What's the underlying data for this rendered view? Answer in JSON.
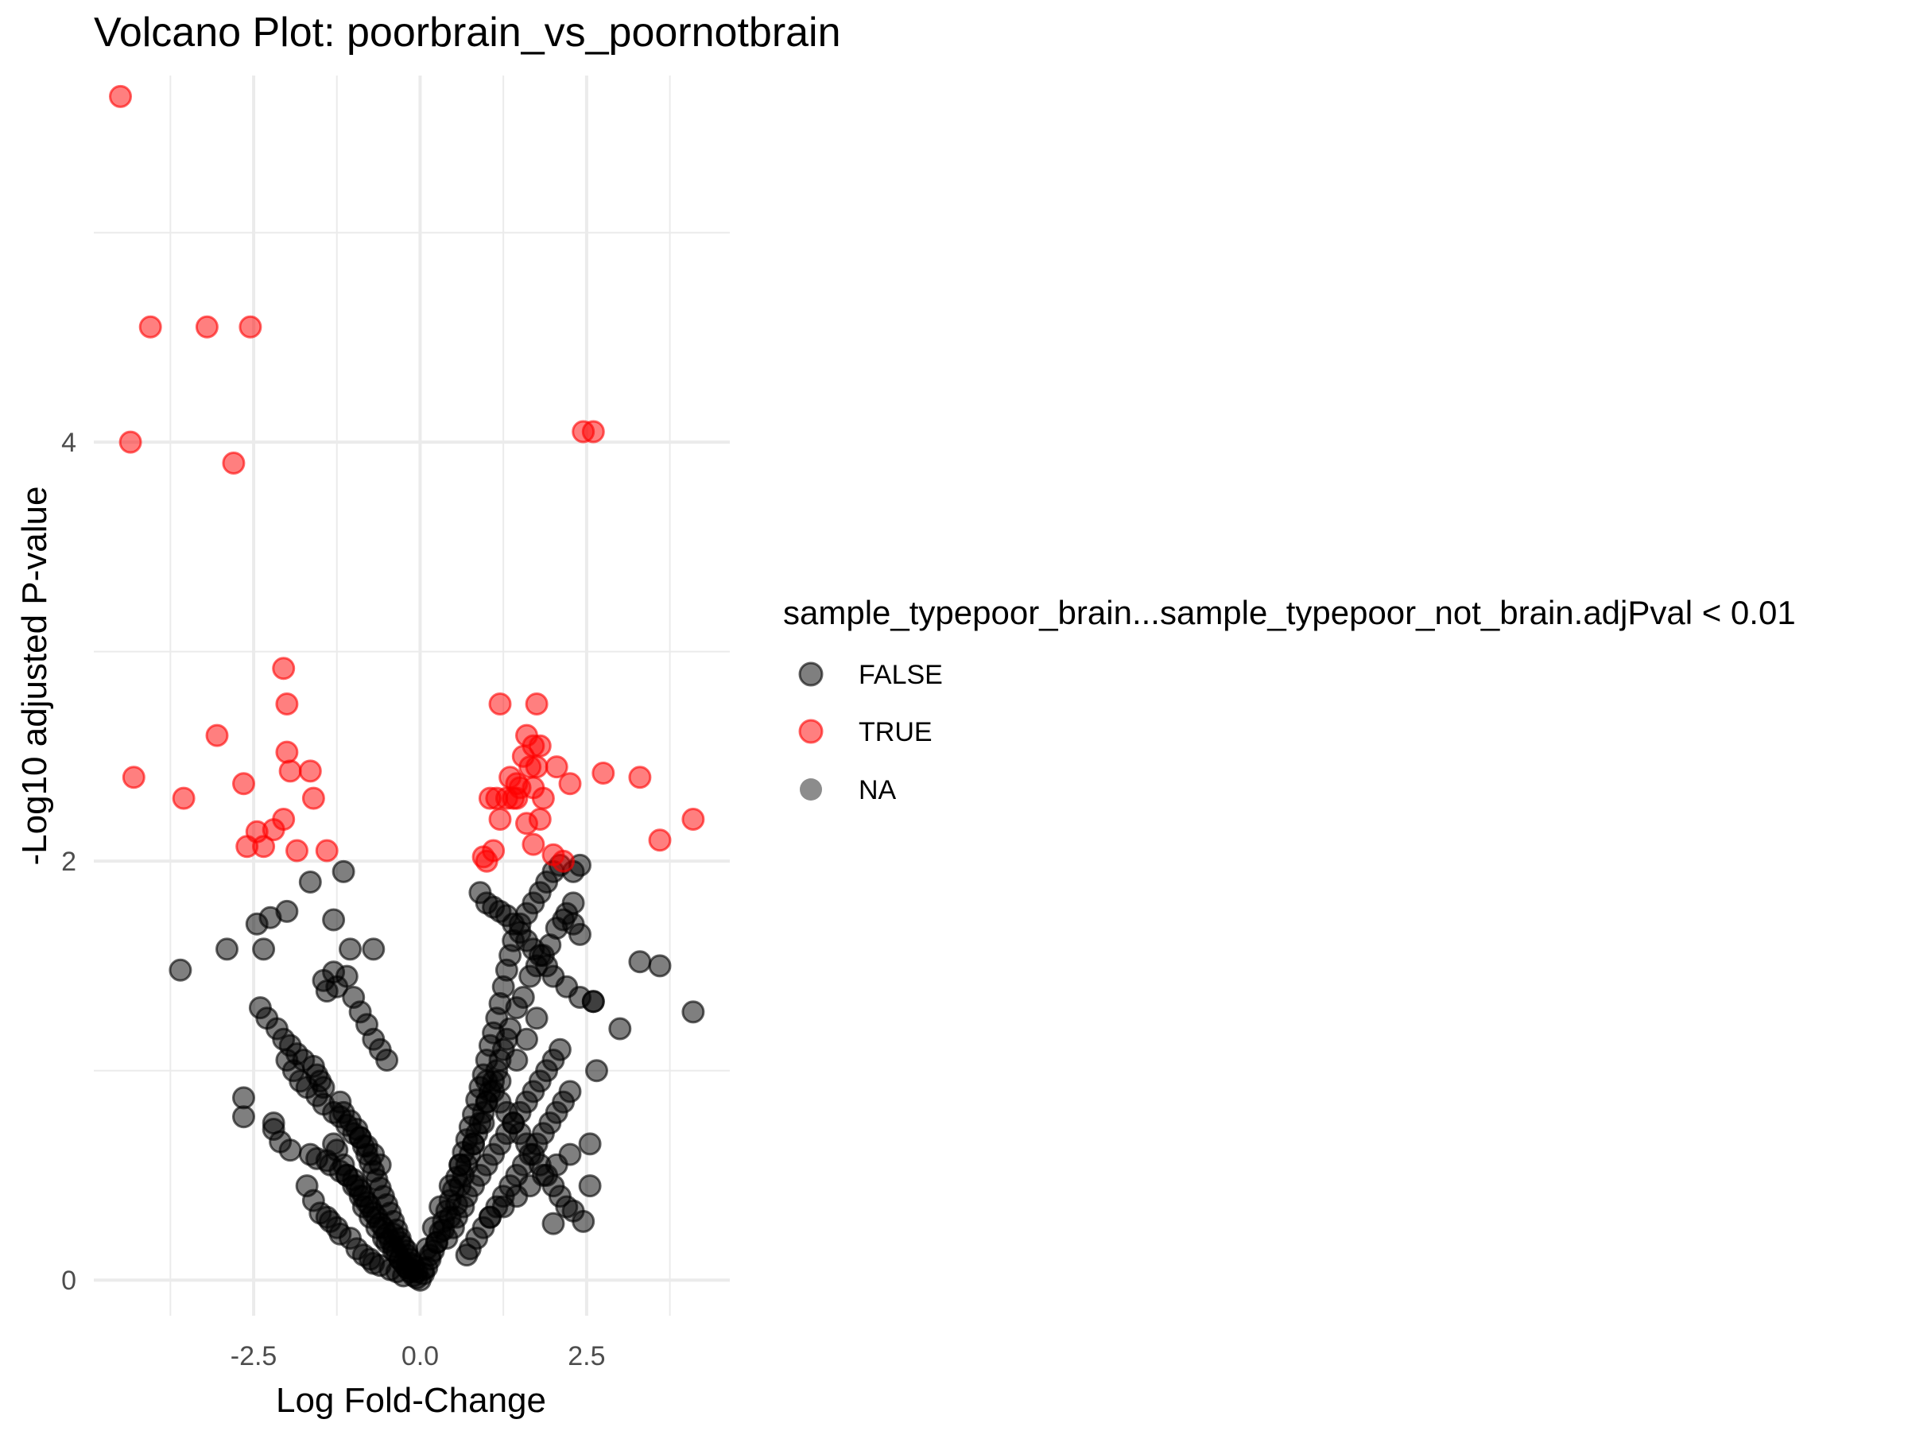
{
  "chart_data": {
    "type": "scatter",
    "title": "Volcano Plot: poorbrain_vs_poornotbrain",
    "xlabel": "Log Fold-Change",
    "ylabel": "-Log10 adjusted P-value",
    "xlim": [
      -4.9,
      4.65
    ],
    "ylim": [
      -0.17,
      5.75
    ],
    "x_ticks": [
      -2.5,
      0.0,
      2.5
    ],
    "x_tick_labels": [
      "-2.5",
      "0.0",
      "2.5"
    ],
    "y_ticks": [
      0,
      2,
      4
    ],
    "y_tick_labels": [
      "0",
      "2",
      "4"
    ],
    "grid": true,
    "legend": {
      "title": "sample_typepoor_brain...sample_typepoor_not_brain.adjPval < 0.01",
      "position": "right",
      "entries": [
        {
          "label": "FALSE",
          "color": "#000000"
        },
        {
          "label": "TRUE",
          "color": "#ff0000"
        },
        {
          "label": "NA",
          "color": "#7f7f7f"
        }
      ]
    },
    "series": [
      {
        "name": "TRUE",
        "color": "#ff0000",
        "x": [
          -4.5,
          -4.05,
          -3.2,
          -2.55,
          -4.35,
          -2.8,
          -2.05,
          -2.0,
          -3.05,
          -4.3,
          -3.55,
          -2.65,
          -2.0,
          -1.65,
          -1.6,
          -1.95,
          -2.05,
          -2.2,
          -2.35,
          -2.6,
          -2.45,
          -1.85,
          -1.4,
          2.45,
          2.6,
          1.2,
          1.75,
          1.6,
          1.7,
          1.8,
          1.55,
          1.65,
          1.75,
          2.05,
          2.75,
          3.3,
          1.35,
          1.45,
          1.5,
          1.7,
          2.25,
          1.4,
          1.15,
          1.3,
          1.05,
          1.45,
          1.85,
          1.2,
          1.6,
          1.8,
          1.7,
          1.1,
          0.95,
          1.0,
          2.0,
          2.15,
          3.6,
          4.1
        ],
        "y": [
          5.65,
          4.55,
          4.55,
          4.55,
          4.0,
          3.9,
          2.92,
          2.75,
          2.6,
          2.4,
          2.3,
          2.37,
          2.52,
          2.43,
          2.3,
          2.43,
          2.2,
          2.15,
          2.07,
          2.07,
          2.14,
          2.05,
          2.05,
          4.05,
          4.05,
          2.75,
          2.75,
          2.6,
          2.55,
          2.55,
          2.5,
          2.45,
          2.45,
          2.45,
          2.42,
          2.4,
          2.4,
          2.37,
          2.35,
          2.35,
          2.37,
          2.3,
          2.3,
          2.3,
          2.3,
          2.3,
          2.3,
          2.2,
          2.18,
          2.2,
          2.08,
          2.05,
          2.02,
          2.0,
          2.03,
          2.0,
          2.1,
          2.2
        ]
      },
      {
        "name": "FALSE",
        "color": "#000000",
        "x": [
          -3.6,
          -2.9,
          -2.35,
          -2.45,
          -2.25,
          -2.0,
          -1.65,
          -1.15,
          -1.3,
          -1.05,
          -0.7,
          -1.45,
          -1.4,
          -1.3,
          -1.25,
          -1.1,
          -1.0,
          -0.9,
          -0.8,
          -0.7,
          -0.6,
          -0.5,
          -2.4,
          -2.3,
          -2.15,
          -2.05,
          -1.95,
          -1.85,
          -1.75,
          -1.6,
          -1.55,
          -1.5,
          -1.45,
          -2.65,
          -2.65,
          -2.2,
          -2.2,
          -2.1,
          -1.95,
          -1.65,
          -1.55,
          -1.4,
          -1.35,
          -1.2,
          -1.1,
          -1.0,
          -0.95,
          -0.9,
          -0.85,
          -0.8,
          -0.75,
          -0.7,
          -0.65,
          -0.6,
          -0.55,
          -0.5,
          -0.45,
          -0.4,
          -0.35,
          -0.3,
          -0.25,
          -0.2,
          -0.15,
          -0.1,
          -0.05,
          -1.2,
          -1.15,
          -1.05,
          -0.95,
          -0.9,
          -0.85,
          -0.8,
          -0.75,
          -0.7,
          -0.65,
          -0.6,
          -0.55,
          -0.5,
          -0.45,
          -0.4,
          -0.35,
          -0.3,
          -0.25,
          -0.2,
          -0.15,
          -0.1,
          -1.3,
          -1.25,
          -1.15,
          -1.1,
          -1.0,
          -0.9,
          -0.85,
          -0.75,
          -0.65,
          -0.55,
          -0.5,
          -0.4,
          -0.3,
          -0.2,
          -1.7,
          -1.6,
          -1.5,
          -1.4,
          -1.35,
          -1.25,
          -1.2,
          -1.05,
          -0.95,
          -0.85,
          -0.75,
          -0.7,
          -0.6,
          -0.45,
          -0.35,
          -0.25,
          -2.0,
          -1.9,
          -1.8,
          -1.7,
          -1.55,
          -1.45,
          -1.3,
          -1.2,
          -1.1,
          -1.0,
          -0.9,
          -0.8,
          -0.7,
          -0.6,
          0.0,
          0.05,
          0.1,
          0.15,
          0.2,
          0.25,
          0.3,
          0.35,
          0.4,
          0.45,
          0.5,
          0.55,
          0.6,
          0.65,
          0.7,
          0.75,
          0.8,
          0.85,
          0.9,
          0.95,
          1.0,
          1.05,
          1.1,
          1.15,
          1.2,
          1.25,
          1.3,
          1.35,
          1.4,
          1.5,
          1.6,
          1.7,
          1.8,
          1.9,
          2.0,
          2.1,
          2.2,
          2.3,
          2.4,
          0.6,
          0.65,
          0.7,
          0.75,
          0.8,
          0.85,
          0.9,
          0.95,
          1.0,
          1.05,
          1.1,
          1.15,
          1.2,
          1.25,
          1.3,
          1.35,
          1.45,
          1.55,
          1.65,
          1.75,
          1.85,
          1.95,
          2.05,
          2.15,
          2.3,
          0.4,
          0.5,
          0.55,
          0.65,
          0.7,
          0.8,
          0.9,
          1.0,
          1.1,
          1.2,
          1.3,
          1.4,
          1.5,
          1.6,
          1.7,
          1.8,
          1.9,
          2.0,
          2.1,
          0.7,
          0.75,
          0.85,
          0.95,
          1.05,
          1.15,
          1.25,
          1.35,
          1.45,
          1.55,
          1.65,
          1.75,
          1.85,
          1.95,
          2.05,
          2.15,
          2.25,
          0.9,
          1.0,
          1.1,
          1.2,
          1.3,
          1.4,
          1.5,
          1.6,
          1.7,
          1.8,
          1.9,
          2.0,
          2.2,
          2.4,
          2.6,
          1.0,
          1.1,
          1.2,
          1.3,
          1.4,
          1.5,
          1.6,
          1.7,
          1.8,
          1.9,
          2.0,
          2.1,
          2.2,
          2.3,
          2.45,
          2.55,
          2.65,
          1.05,
          1.25,
          1.45,
          1.65,
          1.85,
          2.05,
          2.25,
          2.55,
          3.3,
          3.6,
          4.1,
          3.0,
          2.6,
          2.4,
          2.0,
          2.3,
          1.75,
          1.6,
          1.45,
          1.2,
          1.0,
          0.95,
          0.8,
          0.6,
          0.45,
          0.3,
          0.2,
          0.1,
          0.05,
          0.15,
          0.25,
          0.35,
          0.45,
          0.55,
          -0.05,
          -0.1,
          -0.15,
          -0.2,
          -0.3,
          -0.4
        ],
        "y": [
          1.48,
          1.58,
          1.58,
          1.7,
          1.73,
          1.76,
          1.9,
          1.95,
          1.72,
          1.58,
          1.58,
          1.43,
          1.38,
          1.47,
          1.4,
          1.45,
          1.35,
          1.28,
          1.22,
          1.15,
          1.1,
          1.05,
          1.3,
          1.25,
          1.2,
          1.15,
          1.12,
          1.08,
          1.05,
          1.02,
          0.98,
          0.95,
          0.92,
          0.87,
          0.78,
          0.75,
          0.72,
          0.66,
          0.62,
          0.6,
          0.58,
          0.57,
          0.55,
          0.52,
          0.5,
          0.48,
          0.45,
          0.43,
          0.4,
          0.37,
          0.35,
          0.32,
          0.3,
          0.27,
          0.25,
          0.22,
          0.19,
          0.16,
          0.13,
          0.1,
          0.08,
          0.06,
          0.04,
          0.02,
          0.01,
          0.85,
          0.8,
          0.76,
          0.72,
          0.68,
          0.64,
          0.6,
          0.56,
          0.52,
          0.48,
          0.44,
          0.4,
          0.36,
          0.32,
          0.28,
          0.24,
          0.2,
          0.16,
          0.12,
          0.08,
          0.05,
          0.65,
          0.62,
          0.55,
          0.5,
          0.45,
          0.4,
          0.35,
          0.3,
          0.25,
          0.2,
          0.18,
          0.14,
          0.1,
          0.06,
          0.45,
          0.38,
          0.32,
          0.3,
          0.28,
          0.25,
          0.22,
          0.2,
          0.15,
          0.12,
          0.1,
          0.08,
          0.07,
          0.05,
          0.04,
          0.02,
          1.05,
          1.0,
          0.95,
          0.92,
          0.88,
          0.84,
          0.8,
          0.78,
          0.74,
          0.7,
          0.68,
          0.64,
          0.6,
          0.55,
          0.0,
          0.03,
          0.06,
          0.1,
          0.14,
          0.18,
          0.23,
          0.28,
          0.33,
          0.38,
          0.43,
          0.49,
          0.55,
          0.61,
          0.67,
          0.73,
          0.79,
          0.86,
          0.92,
          0.98,
          1.05,
          1.12,
          1.18,
          1.25,
          1.32,
          1.4,
          1.48,
          1.55,
          1.62,
          1.7,
          1.75,
          1.8,
          1.85,
          1.9,
          1.95,
          1.98,
          1.75,
          1.7,
          1.65,
          0.45,
          0.5,
          0.55,
          0.6,
          0.65,
          0.7,
          0.75,
          0.8,
          0.85,
          0.9,
          0.95,
          1.0,
          1.05,
          1.1,
          1.15,
          1.2,
          1.3,
          1.35,
          1.45,
          1.5,
          1.55,
          1.6,
          1.68,
          1.72,
          1.8,
          0.2,
          0.25,
          0.3,
          0.35,
          0.4,
          0.45,
          0.5,
          0.55,
          0.6,
          0.65,
          0.7,
          0.75,
          0.8,
          0.85,
          0.9,
          0.95,
          1.0,
          1.05,
          1.1,
          0.12,
          0.15,
          0.2,
          0.25,
          0.3,
          0.35,
          0.4,
          0.45,
          0.5,
          0.55,
          0.6,
          0.65,
          0.7,
          0.75,
          0.8,
          0.85,
          0.9,
          1.85,
          1.8,
          1.78,
          1.76,
          1.74,
          1.7,
          1.66,
          1.62,
          1.58,
          1.55,
          1.5,
          1.45,
          1.4,
          1.35,
          1.33,
          0.95,
          0.9,
          0.85,
          0.8,
          0.75,
          0.7,
          0.65,
          0.6,
          0.55,
          0.5,
          0.45,
          0.4,
          0.35,
          0.33,
          0.28,
          0.45,
          1.0,
          0.3,
          0.35,
          0.4,
          0.45,
          0.5,
          0.55,
          0.6,
          0.65,
          1.52,
          1.5,
          1.28,
          1.2,
          1.33,
          1.98,
          0.27,
          1.95,
          1.25,
          1.15,
          1.05,
          0.95,
          0.85,
          0.75,
          0.65,
          0.55,
          0.45,
          0.35,
          0.25,
          0.15,
          0.05,
          0.12,
          0.18,
          0.24,
          0.3,
          0.36,
          0.04,
          0.07,
          0.1,
          0.14,
          0.18,
          0.22
        ]
      }
    ]
  }
}
